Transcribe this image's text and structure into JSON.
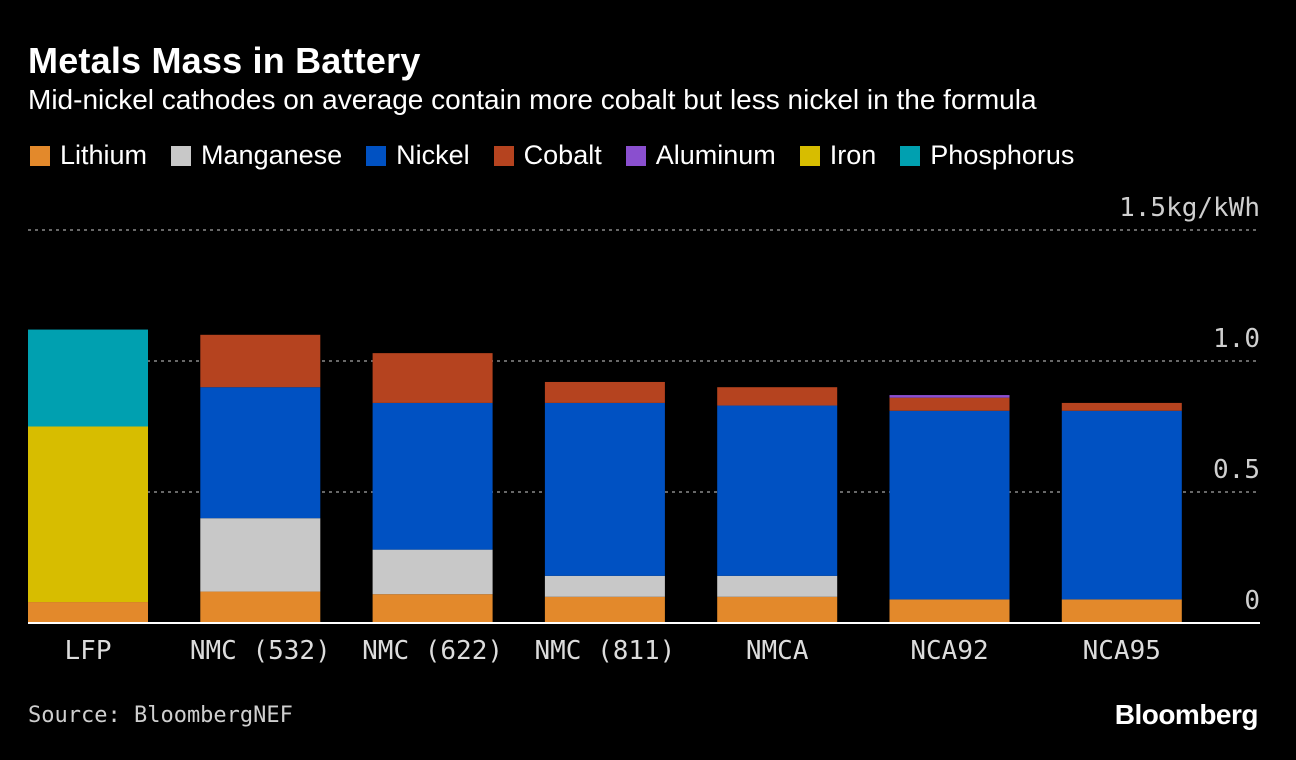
{
  "title": "Metals Mass in Battery",
  "subtitle": "Mid-nickel cathodes on average contain more cobalt but less nickel in the formula",
  "source": "Source: BloombergNEF",
  "brand": "Bloomberg",
  "chart_data": {
    "type": "bar",
    "stacked": true,
    "title": "Metals Mass in Battery",
    "subtitle": "Mid-nickel cathodes on average contain more cobalt but less nickel in the formula",
    "unit": "kg/kWh",
    "ylim": [
      0,
      1.5
    ],
    "yticks": [
      0,
      0.5,
      1.0,
      1.5
    ],
    "ytick_labels": [
      "0",
      "0.5",
      "1.0",
      "1.5kg/kWh"
    ],
    "grid": true,
    "legend_position": "top",
    "categories": [
      "LFP",
      "NMC (532)",
      "NMC (622)",
      "NMC (811)",
      "NMCA",
      "NCA92",
      "NCA95"
    ],
    "series": [
      {
        "name": "Lithium",
        "color": "#e3892b",
        "values": [
          0.08,
          0.12,
          0.11,
          0.1,
          0.1,
          0.09,
          0.09
        ]
      },
      {
        "name": "Manganese",
        "color": "#c8c8c8",
        "values": [
          0,
          0.28,
          0.17,
          0.08,
          0.08,
          0,
          0
        ]
      },
      {
        "name": "Nickel",
        "color": "#0051c2",
        "values": [
          0,
          0.5,
          0.56,
          0.66,
          0.65,
          0.72,
          0.72
        ]
      },
      {
        "name": "Cobalt",
        "color": "#b5431f",
        "values": [
          0,
          0.2,
          0.19,
          0.08,
          0.07,
          0.05,
          0.03
        ]
      },
      {
        "name": "Aluminum",
        "color": "#8a4fcf",
        "values": [
          0,
          0,
          0,
          0,
          0,
          0.01,
          0
        ]
      },
      {
        "name": "Iron",
        "color": "#d7bd00",
        "values": [
          0.67,
          0,
          0,
          0,
          0,
          0,
          0
        ]
      },
      {
        "name": "Phosphorus",
        "color": "#00a0b0",
        "values": [
          0.37,
          0,
          0,
          0,
          0,
          0,
          0
        ]
      }
    ]
  }
}
